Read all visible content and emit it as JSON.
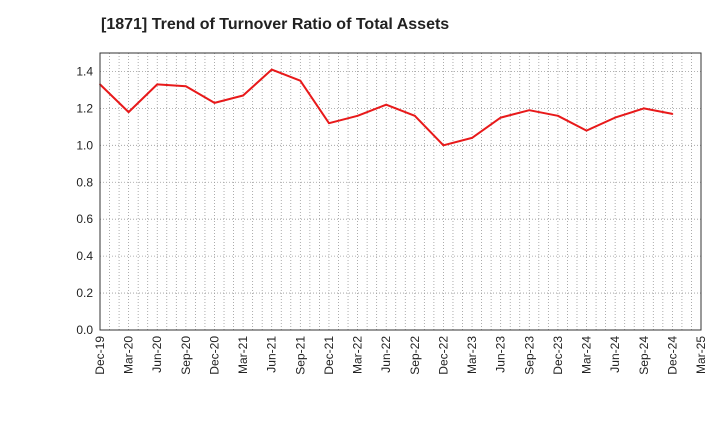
{
  "chart_data": {
    "type": "line",
    "title": "[1871]  Trend of Turnover Ratio of Total Assets",
    "xlabel": "",
    "ylabel": "",
    "ylim": [
      0.0,
      1.5
    ],
    "yticks": [
      "0.0",
      "0.2",
      "0.4",
      "0.6",
      "0.8",
      "1.0",
      "1.2",
      "1.4"
    ],
    "grid": true,
    "categories": [
      "Dec-19",
      "Mar-20",
      "Jun-20",
      "Sep-20",
      "Dec-20",
      "Mar-21",
      "Jun-21",
      "Sep-21",
      "Dec-21",
      "Mar-22",
      "Jun-22",
      "Sep-22",
      "Dec-22",
      "Mar-23",
      "Jun-23",
      "Sep-23",
      "Dec-23",
      "Mar-24",
      "Jun-24",
      "Sep-24",
      "Dec-24",
      "Mar-25"
    ],
    "series": [
      {
        "color": "#e8191a",
        "values": [
          1.33,
          1.18,
          1.33,
          1.32,
          1.23,
          1.27,
          1.41,
          1.35,
          1.12,
          1.16,
          1.22,
          1.16,
          1.0,
          1.04,
          1.15,
          1.19,
          1.16,
          1.08,
          1.15,
          1.2,
          1.17,
          null
        ]
      }
    ]
  }
}
